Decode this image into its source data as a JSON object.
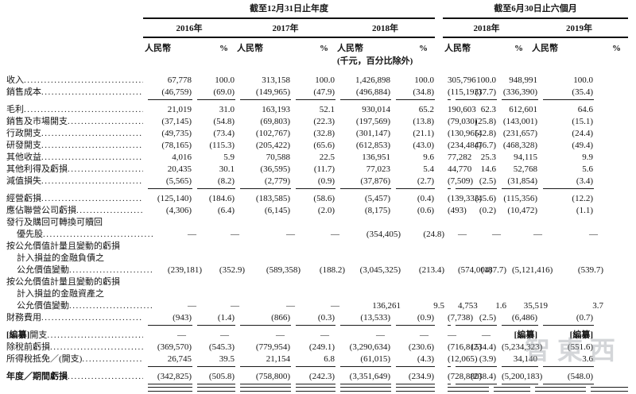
{
  "table": {
    "groups": [
      {
        "title": "截至12月31日止年度",
        "years": [
          "2016年",
          "2017年",
          "2018年"
        ]
      },
      {
        "title": "截至6月30日止六個月",
        "years": [
          "2018年",
          "2019年"
        ]
      }
    ],
    "subheaders": {
      "currency": "人民幣",
      "percent": "%",
      "unit_note": "(千元，百分比除外)"
    },
    "rows": [
      {
        "label_lines": [
          "收入"
        ],
        "values": [
          "67,778",
          "100.0",
          "313,158",
          "100.0",
          "1,426,898",
          "100.0",
          "305,796",
          "100.0",
          "948,991",
          "100.0"
        ]
      },
      {
        "label_lines": [
          "銷售成本"
        ],
        "values": [
          "(46,759)",
          "(69.0)",
          "(149,965)",
          "(47.9)",
          "(496,884)",
          "(34.8)",
          "(115,193)",
          "(37.7)",
          "(336,390)",
          "(35.4)"
        ],
        "rule": "single"
      },
      {
        "label_lines": [
          "毛利"
        ],
        "gap_before": true,
        "values": [
          "21,019",
          "31.0",
          "163,193",
          "52.1",
          "930,014",
          "65.2",
          "190,603",
          "62.3",
          "612,601",
          "64.6"
        ]
      },
      {
        "label_lines": [
          "銷售及市場開支"
        ],
        "values": [
          "(37,145)",
          "(54.8)",
          "(69,803)",
          "(22.3)",
          "(197,569)",
          "(13.8)",
          "(79,030)",
          "(25.8)",
          "(143,001)",
          "(15.1)"
        ]
      },
      {
        "label_lines": [
          "行政開支"
        ],
        "values": [
          "(49,735)",
          "(73.4)",
          "(102,767)",
          "(32.8)",
          "(301,147)",
          "(21.1)",
          "(130,965)",
          "(42.8)",
          "(231,657)",
          "(24.4)"
        ]
      },
      {
        "label_lines": [
          "研發開支"
        ],
        "values": [
          "(78,165)",
          "(115.3)",
          "(205,422)",
          "(65.6)",
          "(612,853)",
          "(43.0)",
          "(234,484)",
          "(76.7)",
          "(468,328)",
          "(49.4)"
        ]
      },
      {
        "label_lines": [
          "其他收益"
        ],
        "values": [
          "4,016",
          "5.9",
          "70,588",
          "22.5",
          "136,951",
          "9.6",
          "77,282",
          "25.3",
          "94,115",
          "9.9"
        ]
      },
      {
        "label_lines": [
          "其他利得及虧損"
        ],
        "values": [
          "20,435",
          "30.1",
          "(36,595)",
          "(11.7)",
          "77,023",
          "5.4",
          "44,770",
          "14.6",
          "52,768",
          "5.6"
        ]
      },
      {
        "label_lines": [
          "減值損失"
        ],
        "values": [
          "(5,565)",
          "(8.2)",
          "(2,779)",
          "(0.9)",
          "(37,876)",
          "(2.7)",
          "(7,509)",
          "(2.5)",
          "(31,854)",
          "(3.4)"
        ],
        "rule": "single"
      },
      {
        "label_lines": [
          "經營虧損"
        ],
        "gap_before": true,
        "values": [
          "(125,140)",
          "(184.6)",
          "(183,585)",
          "(58.6)",
          "(5,457)",
          "(0.4)",
          "(139,333)",
          "(45.6)",
          "(115,356)",
          "(12.2)"
        ]
      },
      {
        "label_lines": [
          "應佔聯營公司虧損"
        ],
        "values": [
          "(4,306)",
          "(6.4)",
          "(6,145)",
          "(2.0)",
          "(8,175)",
          "(0.6)",
          "(493)",
          "(0.2)",
          "(10,472)",
          "(1.1)"
        ]
      },
      {
        "label_lines": [
          "發行及購回可轉換可贖回",
          "優先股"
        ],
        "values": [
          "—",
          "—",
          "—",
          "—",
          "(354,405)",
          "(24.8)",
          "—",
          "—",
          "—",
          "—"
        ]
      },
      {
        "label_lines": [
          "按公允價值計量且變動的虧損",
          "計入損益的金融負債之",
          "公允價值變動"
        ],
        "values": [
          "(239,181)",
          "(352.9)",
          "(589,358)",
          "(188.2)",
          "(3,045,325)",
          "(213.4)",
          "(574,004)",
          "(187.7)",
          "(5,121,416)",
          "(539.7)"
        ]
      },
      {
        "label_lines": [
          "按公允價值計量且變動的虧損",
          "計入損益的金融資產之",
          "公允價值變動"
        ],
        "values": [
          "—",
          "—",
          "—",
          "—",
          "136,261",
          "9.5",
          "4,753",
          "1.6",
          "35,519",
          "3.7"
        ]
      },
      {
        "label_lines": [
          "財務費用"
        ],
        "values": [
          "(943)",
          "(1.4)",
          "(866)",
          "(0.3)",
          "(13,533)",
          "(0.9)",
          "(7,738)",
          "(2.5)",
          "(6,486)",
          "(0.7)"
        ],
        "rule": "single"
      },
      {
        "label_lines": [
          "[編纂]開支"
        ],
        "gap_before": true,
        "values": [
          "—",
          "—",
          "—",
          "—",
          "—",
          "—",
          "—",
          "—",
          "[編纂]",
          "[編纂]"
        ]
      },
      {
        "label_lines": [
          "除稅前虧損"
        ],
        "values": [
          "(369,570)",
          "(545.3)",
          "(779,954)",
          "(249.1)",
          "(3,290,634)",
          "(230.6)",
          "(716,815)",
          "(234.4)",
          "(5,234,323)",
          "(551.6)"
        ]
      },
      {
        "label_lines": [
          "所得稅抵免／(開支)"
        ],
        "values": [
          "26,745",
          "39.5",
          "21,154",
          "6.8",
          "(61,015)",
          "(4.3)",
          "(12,065)",
          "(3.9)",
          "34,140",
          "3.6"
        ],
        "rule": "single"
      },
      {
        "label_lines": [
          "年度／期間虧損"
        ],
        "bold": true,
        "gap_before": true,
        "values": [
          "(342,825)",
          "(505.8)",
          "(758,800)",
          "(242.3)",
          "(3,351,649)",
          "(234.9)",
          "(728,880)",
          "(238.4)",
          "(5,200,183)",
          "(548.0)"
        ],
        "rule": "double"
      }
    ]
  },
  "watermark": {
    "text": "智東西"
  }
}
